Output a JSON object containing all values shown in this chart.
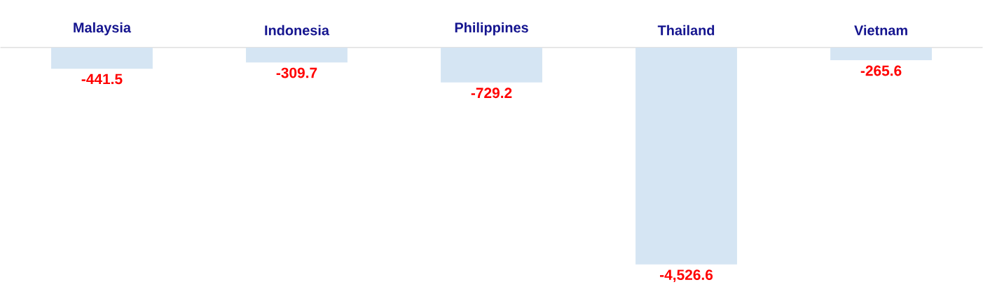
{
  "chart_data": {
    "type": "bar",
    "categories": [
      "Malaysia",
      "Indonesia",
      "Philippines",
      "Thailand",
      "Vietnam"
    ],
    "values": [
      -441.5,
      -309.7,
      -729.2,
      -4526.6,
      -265.6
    ],
    "color": "#d5e5f3",
    "value_labels": [
      "-441.5",
      "-309.7",
      "-729.2",
      "-4,526.6",
      "-265.6"
    ]
  }
}
